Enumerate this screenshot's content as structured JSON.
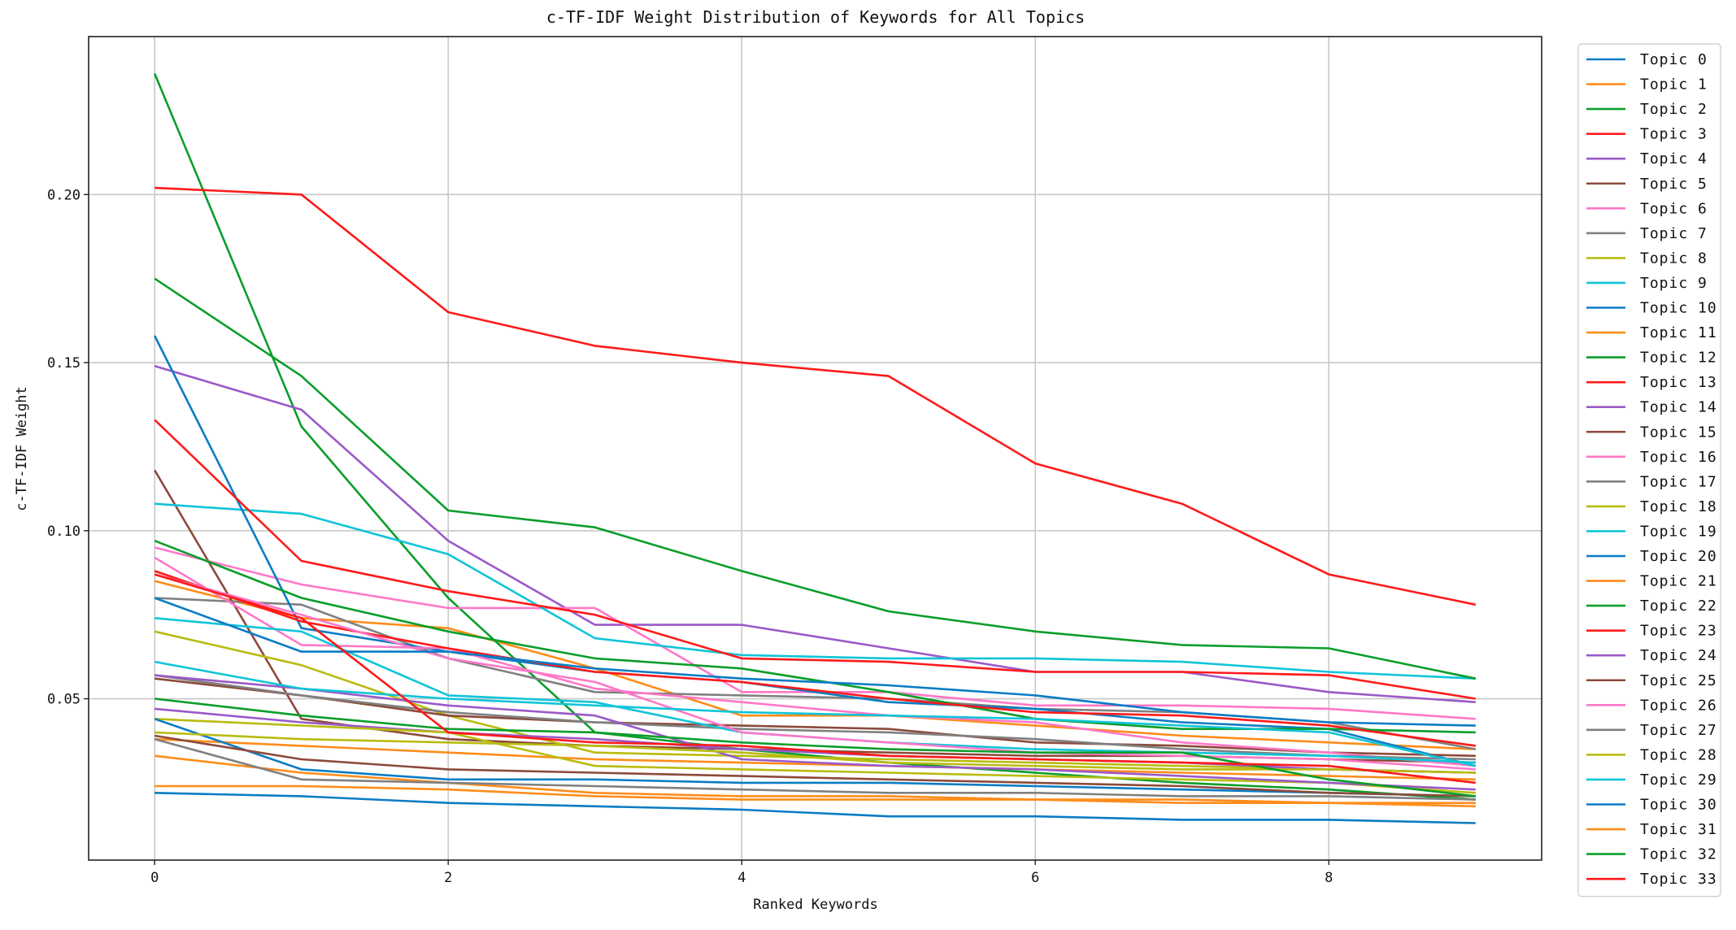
{
  "chart_data": {
    "type": "line",
    "title": "c-TF-IDF Weight Distribution of Keywords for All Topics",
    "xlabel": "Ranked Keywords",
    "ylabel": "c-TF-IDF Weight",
    "x": [
      0,
      1,
      2,
      3,
      4,
      5,
      6,
      7,
      8,
      9
    ],
    "xticks": [
      0,
      2,
      4,
      6,
      8
    ],
    "xtick_labels": [
      "0",
      "2",
      "4",
      "6",
      "8"
    ],
    "yticks": [
      0.05,
      0.1,
      0.15,
      0.2
    ],
    "ytick_labels": [
      "0.05",
      "0.10",
      "0.15",
      "0.20"
    ],
    "xlim": [
      -0.45,
      9.45
    ],
    "ylim": [
      0.002,
      0.247
    ],
    "grid": true,
    "legend_placement": "outside-right",
    "colors": [
      "#0a7cc4",
      "#ff8c1a",
      "#0a9e2a",
      "#ff1a1a",
      "#9b59c8",
      "#8c4a3a",
      "#ff77c8",
      "#808080",
      "#b8bc10",
      "#10c4d8"
    ],
    "series": [
      {
        "name": "Topic 0",
        "values": [
          0.022,
          0.021,
          0.019,
          0.018,
          0.017,
          0.015,
          0.015,
          0.014,
          0.014,
          0.013
        ]
      },
      {
        "name": "Topic 1",
        "values": [
          0.085,
          0.074,
          0.071,
          0.059,
          0.045,
          0.045,
          0.042,
          0.039,
          0.037,
          0.035
        ]
      },
      {
        "name": "Topic 2",
        "values": [
          0.236,
          0.131,
          0.08,
          0.04,
          0.035,
          0.031,
          0.028,
          0.025,
          0.023,
          0.02
        ]
      },
      {
        "name": "Topic 3",
        "values": [
          0.202,
          0.2,
          0.165,
          0.155,
          0.15,
          0.146,
          0.12,
          0.108,
          0.087,
          0.078
        ]
      },
      {
        "name": "Topic 4",
        "values": [
          0.149,
          0.136,
          0.097,
          0.072,
          0.072,
          0.065,
          0.058,
          0.058,
          0.052,
          0.049
        ]
      },
      {
        "name": "Topic 5",
        "values": [
          0.118,
          0.044,
          0.038,
          0.036,
          0.035,
          0.034,
          0.033,
          0.033,
          0.032,
          0.031
        ]
      },
      {
        "name": "Topic 6",
        "values": [
          0.095,
          0.084,
          0.077,
          0.077,
          0.052,
          0.052,
          0.048,
          0.048,
          0.047,
          0.044
        ]
      },
      {
        "name": "Topic 7",
        "values": [
          0.08,
          0.078,
          0.062,
          0.052,
          0.051,
          0.05,
          0.047,
          0.046,
          0.043,
          0.035
        ]
      },
      {
        "name": "Topic 8",
        "values": [
          0.07,
          0.06,
          0.045,
          0.034,
          0.033,
          0.032,
          0.031,
          0.03,
          0.029,
          0.028
        ]
      },
      {
        "name": "Topic 9",
        "values": [
          0.108,
          0.105,
          0.093,
          0.068,
          0.063,
          0.062,
          0.062,
          0.061,
          0.058,
          0.056
        ]
      },
      {
        "name": "Topic 10",
        "values": [
          0.158,
          0.071,
          0.064,
          0.058,
          0.055,
          0.049,
          0.047,
          0.043,
          0.041,
          0.03
        ]
      },
      {
        "name": "Topic 11",
        "values": [
          0.038,
          0.036,
          0.034,
          0.032,
          0.031,
          0.03,
          0.029,
          0.028,
          0.027,
          0.026
        ]
      },
      {
        "name": "Topic 12",
        "values": [
          0.175,
          0.146,
          0.106,
          0.101,
          0.088,
          0.076,
          0.07,
          0.066,
          0.065,
          0.056
        ]
      },
      {
        "name": "Topic 13",
        "values": [
          0.133,
          0.091,
          0.082,
          0.075,
          0.062,
          0.061,
          0.058,
          0.058,
          0.057,
          0.05
        ]
      },
      {
        "name": "Topic 14",
        "values": [
          0.047,
          0.043,
          0.04,
          0.038,
          0.035,
          0.033,
          0.032,
          0.031,
          0.029,
          0.028
        ]
      },
      {
        "name": "Topic 15",
        "values": [
          0.056,
          0.051,
          0.045,
          0.043,
          0.042,
          0.041,
          0.037,
          0.036,
          0.034,
          0.033
        ]
      },
      {
        "name": "Topic 16",
        "values": [
          0.092,
          0.066,
          0.065,
          0.053,
          0.049,
          0.045,
          0.043,
          0.037,
          0.034,
          0.03
        ]
      },
      {
        "name": "Topic 17",
        "values": [
          0.057,
          0.051,
          0.046,
          0.043,
          0.041,
          0.04,
          0.038,
          0.035,
          0.033,
          0.032
        ]
      },
      {
        "name": "Topic 18",
        "values": [
          0.044,
          0.042,
          0.04,
          0.03,
          0.029,
          0.028,
          0.027,
          0.026,
          0.025,
          0.022
        ]
      },
      {
        "name": "Topic 19",
        "values": [
          0.074,
          0.07,
          0.051,
          0.049,
          0.04,
          0.037,
          0.035,
          0.034,
          0.033,
          0.031
        ]
      },
      {
        "name": "Topic 20",
        "values": [
          0.044,
          0.029,
          0.026,
          0.026,
          0.025,
          0.025,
          0.024,
          0.023,
          0.022,
          0.021
        ]
      },
      {
        "name": "Topic 21",
        "values": [
          0.033,
          0.028,
          0.025,
          0.022,
          0.021,
          0.021,
          0.02,
          0.019,
          0.019,
          0.018
        ]
      },
      {
        "name": "Topic 22",
        "values": [
          0.097,
          0.08,
          0.07,
          0.062,
          0.059,
          0.052,
          0.044,
          0.041,
          0.041,
          0.04
        ]
      },
      {
        "name": "Topic 23",
        "values": [
          0.088,
          0.073,
          0.065,
          0.058,
          0.055,
          0.05,
          0.046,
          0.045,
          0.042,
          0.036
        ]
      },
      {
        "name": "Topic 24",
        "values": [
          0.057,
          0.053,
          0.048,
          0.045,
          0.032,
          0.03,
          0.029,
          0.027,
          0.025,
          0.023
        ]
      },
      {
        "name": "Topic 25",
        "values": [
          0.039,
          0.032,
          0.029,
          0.028,
          0.027,
          0.026,
          0.025,
          0.024,
          0.022,
          0.021
        ]
      },
      {
        "name": "Topic 26",
        "values": [
          0.087,
          0.075,
          0.062,
          0.055,
          0.04,
          0.037,
          0.034,
          0.033,
          0.032,
          0.029
        ]
      },
      {
        "name": "Topic 27",
        "values": [
          0.038,
          0.026,
          0.025,
          0.024,
          0.023,
          0.022,
          0.022,
          0.021,
          0.021,
          0.02
        ]
      },
      {
        "name": "Topic 28",
        "values": [
          0.04,
          0.038,
          0.037,
          0.036,
          0.034,
          0.031,
          0.03,
          0.029,
          0.029,
          0.028
        ]
      },
      {
        "name": "Topic 29",
        "values": [
          0.061,
          0.053,
          0.05,
          0.048,
          0.046,
          0.045,
          0.044,
          0.042,
          0.04,
          0.03
        ]
      },
      {
        "name": "Topic 30",
        "values": [
          0.08,
          0.064,
          0.064,
          0.059,
          0.056,
          0.054,
          0.051,
          0.046,
          0.043,
          0.042
        ]
      },
      {
        "name": "Topic 31",
        "values": [
          0.024,
          0.024,
          0.023,
          0.021,
          0.02,
          0.02,
          0.02,
          0.02,
          0.019,
          0.019
        ]
      },
      {
        "name": "Topic 32",
        "values": [
          0.05,
          0.045,
          0.041,
          0.04,
          0.037,
          0.035,
          0.034,
          0.034,
          0.026,
          0.021
        ]
      },
      {
        "name": "Topic 33",
        "values": [
          0.087,
          0.074,
          0.04,
          0.037,
          0.036,
          0.033,
          0.032,
          0.031,
          0.03,
          0.025
        ]
      }
    ]
  }
}
